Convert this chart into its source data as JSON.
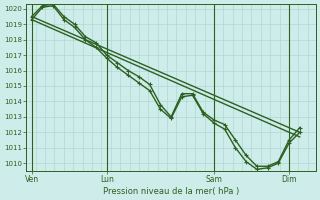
{
  "background_color": "#ceecea",
  "grid_color": "#aed8d4",
  "line_color": "#2d6020",
  "ylabel_min": 1010,
  "ylabel_max": 1020,
  "yticks": [
    1010,
    1011,
    1012,
    1013,
    1014,
    1015,
    1016,
    1017,
    1018,
    1019,
    1020
  ],
  "xlabel": "Pression niveau de la mer( hPa )",
  "xtick_labels": [
    "Ven",
    "Lun",
    "Sam",
    "Dim"
  ],
  "xtick_positions": [
    0,
    28,
    68,
    96
  ],
  "vline_positions": [
    0,
    28,
    68,
    96
  ],
  "xlim": [
    -2,
    106
  ],
  "series_detail": [
    {
      "name": "line1_markers",
      "x": [
        0,
        4,
        8,
        12,
        16,
        20,
        24,
        28,
        32,
        36,
        40,
        44,
        48,
        52,
        56,
        60,
        64,
        68,
        72,
        76,
        80,
        84,
        88,
        92,
        96,
        100
      ],
      "y": [
        1019.5,
        1020.2,
        1020.3,
        1019.5,
        1019.0,
        1018.2,
        1017.8,
        1017.0,
        1016.5,
        1016.0,
        1015.6,
        1015.1,
        1013.8,
        1013.0,
        1014.5,
        1014.5,
        1013.3,
        1012.8,
        1012.5,
        1011.5,
        1010.5,
        1009.8,
        1009.8,
        1010.1,
        1011.5,
        1012.3
      ],
      "has_marker": true,
      "linewidth": 1.0
    },
    {
      "name": "line2_markers",
      "x": [
        0,
        4,
        8,
        12,
        16,
        20,
        24,
        28,
        32,
        36,
        40,
        44,
        48,
        52,
        56,
        60,
        64,
        68,
        72,
        76,
        80,
        84,
        88,
        92,
        96,
        100
      ],
      "y": [
        1019.3,
        1020.1,
        1020.2,
        1019.3,
        1018.8,
        1018.0,
        1017.5,
        1016.8,
        1016.2,
        1015.7,
        1015.2,
        1014.7,
        1013.5,
        1012.9,
        1014.3,
        1014.4,
        1013.2,
        1012.6,
        1012.2,
        1011.0,
        1010.1,
        1009.6,
        1009.7,
        1010.0,
        1011.3,
        1012.0
      ],
      "has_marker": true,
      "linewidth": 1.0
    },
    {
      "name": "line3_straight",
      "x": [
        0,
        100
      ],
      "y": [
        1019.5,
        1012.0
      ],
      "has_marker": false,
      "linewidth": 1.0
    },
    {
      "name": "line4_straight",
      "x": [
        0,
        100
      ],
      "y": [
        1019.3,
        1011.7
      ],
      "has_marker": false,
      "linewidth": 1.0
    }
  ]
}
